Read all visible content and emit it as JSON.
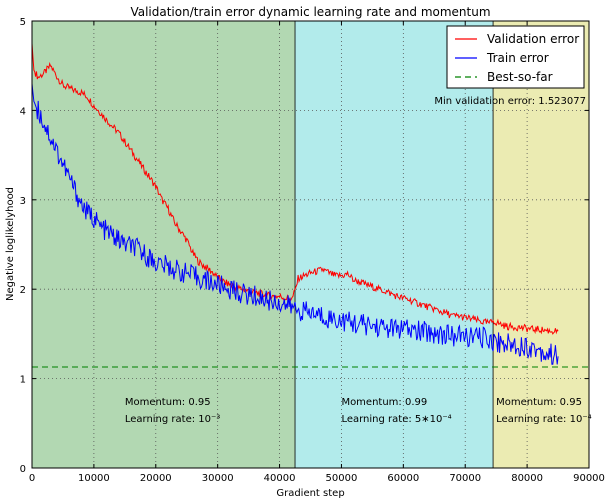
{
  "chart_data": {
    "type": "line",
    "title": "Validation/train error dynamic learning rate and momentum",
    "xlabel": "Gradient step",
    "ylabel": "Negative loglikelyhood",
    "xlim": [
      0,
      90000
    ],
    "ylim": [
      0,
      5
    ],
    "xticks": [
      0,
      10000,
      20000,
      30000,
      40000,
      50000,
      60000,
      70000,
      80000,
      90000
    ],
    "yticks": [
      0,
      1,
      2,
      3,
      4,
      5
    ],
    "grid": true,
    "legend": "top-right",
    "regions": [
      {
        "x_start": 0,
        "x_end": 42500,
        "color": "#b2d8b2",
        "momentum_label": "Momentum: 0.95",
        "lr_label": "Learning rate: 10⁻³",
        "label_x": 15000
      },
      {
        "x_start": 42500,
        "x_end": 74500,
        "color": "#b2ebeb",
        "momentum_label": "Momentum: 0.99",
        "lr_label": "Learning rate: 5∗10⁻⁴",
        "label_x": 50000
      },
      {
        "x_start": 74500,
        "x_end": 90000,
        "color": "#ebebb2",
        "momentum_label": "Momentum: 0.95",
        "lr_label": "Learning rate: 10⁻⁴",
        "label_x": 75000
      }
    ],
    "annotation": "Min validation error: 1.523077",
    "series": [
      {
        "name": "Validation error",
        "color": "#ff0000",
        "style": "solid",
        "x": [
          0,
          300,
          1000,
          2000,
          3000,
          4000,
          5000,
          6000,
          7000,
          8000,
          9000,
          10000,
          11000,
          12000,
          13000,
          14000,
          15000,
          16000,
          17000,
          18000,
          19000,
          20000,
          21000,
          22000,
          23000,
          24000,
          25000,
          26000,
          27000,
          28000,
          29000,
          30000,
          31000,
          32000,
          33000,
          34000,
          35000,
          36000,
          37000,
          38000,
          39000,
          40000,
          41000,
          42000,
          42500,
          43000,
          44000,
          45000,
          46000,
          47000,
          48000,
          49000,
          50000,
          51000,
          52000,
          53000,
          54000,
          55000,
          56000,
          57000,
          58000,
          59000,
          60000,
          61000,
          62000,
          63000,
          64000,
          65000,
          66000,
          67000,
          68000,
          69000,
          70000,
          71000,
          72000,
          73000,
          74000,
          74500,
          75000,
          76000,
          77000,
          78000,
          79000,
          80000,
          81000,
          82000,
          83000,
          84000,
          85000
        ],
        "y": [
          4.75,
          4.45,
          4.37,
          4.42,
          4.5,
          4.38,
          4.28,
          4.25,
          4.22,
          4.2,
          4.15,
          4.05,
          3.98,
          3.9,
          3.82,
          3.75,
          3.65,
          3.55,
          3.45,
          3.35,
          3.25,
          3.15,
          3.0,
          2.9,
          2.75,
          2.65,
          2.55,
          2.4,
          2.3,
          2.25,
          2.2,
          2.13,
          2.08,
          2.05,
          2.02,
          2.0,
          1.98,
          1.96,
          1.95,
          1.93,
          1.92,
          1.92,
          1.9,
          1.89,
          1.98,
          2.12,
          2.15,
          2.18,
          2.2,
          2.22,
          2.18,
          2.15,
          2.15,
          2.17,
          2.1,
          2.08,
          2.05,
          2.03,
          2.0,
          1.98,
          1.95,
          1.92,
          1.9,
          1.88,
          1.85,
          1.83,
          1.8,
          1.78,
          1.75,
          1.73,
          1.7,
          1.7,
          1.68,
          1.67,
          1.65,
          1.63,
          1.62,
          1.65,
          1.63,
          1.6,
          1.58,
          1.58,
          1.57,
          1.56,
          1.55,
          1.55,
          1.54,
          1.53,
          1.53
        ]
      },
      {
        "name": "Train error",
        "color": "#0000ff",
        "style": "solid",
        "x": [
          0,
          300,
          1000,
          2000,
          3000,
          4000,
          5000,
          6000,
          7000,
          8000,
          9000,
          10000,
          11000,
          12000,
          13000,
          14000,
          15000,
          16000,
          17000,
          18000,
          19000,
          20000,
          22000,
          24000,
          26000,
          28000,
          30000,
          32000,
          34000,
          36000,
          38000,
          40000,
          42000,
          42500,
          44000,
          46000,
          48000,
          50000,
          52000,
          54000,
          56000,
          58000,
          60000,
          62000,
          64000,
          66000,
          68000,
          70000,
          72000,
          74000,
          74500,
          76000,
          78000,
          80000,
          82000,
          83000,
          84000,
          85000
        ],
        "y": [
          4.3,
          4.1,
          4.0,
          3.85,
          3.7,
          3.55,
          3.4,
          3.25,
          3.1,
          2.95,
          2.85,
          2.8,
          2.7,
          2.65,
          2.6,
          2.55,
          2.5,
          2.48,
          2.45,
          2.4,
          2.35,
          2.3,
          2.25,
          2.2,
          2.15,
          2.1,
          2.05,
          2.0,
          1.95,
          1.92,
          1.88,
          1.85,
          1.8,
          1.78,
          1.75,
          1.72,
          1.68,
          1.65,
          1.62,
          1.6,
          1.58,
          1.56,
          1.55,
          1.53,
          1.52,
          1.5,
          1.48,
          1.47,
          1.46,
          1.45,
          1.42,
          1.4,
          1.38,
          1.36,
          1.32,
          1.28,
          1.27,
          1.25
        ]
      },
      {
        "name": "Best-so-far",
        "color": "#008000",
        "style": "dashed",
        "x": [
          0,
          90000
        ],
        "y": [
          1.13,
          1.13
        ]
      }
    ]
  }
}
